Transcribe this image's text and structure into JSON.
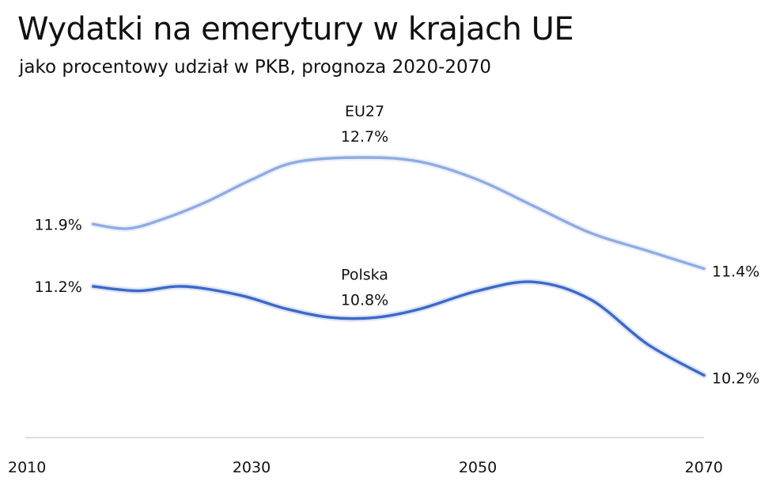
{
  "chart_data": {
    "type": "line",
    "title": "Wydatki na emerytury w krajach UE",
    "subtitle": "jako procentowy udział w PKB, prognoza 2020-2070",
    "x_ticks": [
      "2010",
      "2030",
      "2050",
      "2070"
    ],
    "xlim": [
      2010,
      2070
    ],
    "ylim": [
      9.5,
      13.3
    ],
    "grid": false,
    "series": [
      {
        "name": "EU27",
        "color": "#8fabe3",
        "x": [
          2016,
          2019,
          2022,
          2026,
          2030,
          2034,
          2040,
          2045,
          2050,
          2055,
          2060,
          2065,
          2070
        ],
        "values": [
          11.9,
          11.85,
          11.95,
          12.15,
          12.4,
          12.6,
          12.65,
          12.6,
          12.4,
          12.1,
          11.8,
          11.6,
          11.4
        ],
        "start_label": "11.9%",
        "peak_label": "12.7%",
        "end_label": "11.4%"
      },
      {
        "name": "Polska",
        "color": "#3c68c9",
        "x": [
          2016,
          2020,
          2024,
          2029,
          2033,
          2037,
          2041,
          2045,
          2050,
          2055,
          2060,
          2065,
          2070
        ],
        "values": [
          11.2,
          11.15,
          11.2,
          11.1,
          10.95,
          10.85,
          10.85,
          10.95,
          11.15,
          11.25,
          11.05,
          10.55,
          10.2
        ],
        "start_label": "11.2%",
        "peak_label": "10.8%",
        "end_label": "10.2%"
      }
    ]
  }
}
